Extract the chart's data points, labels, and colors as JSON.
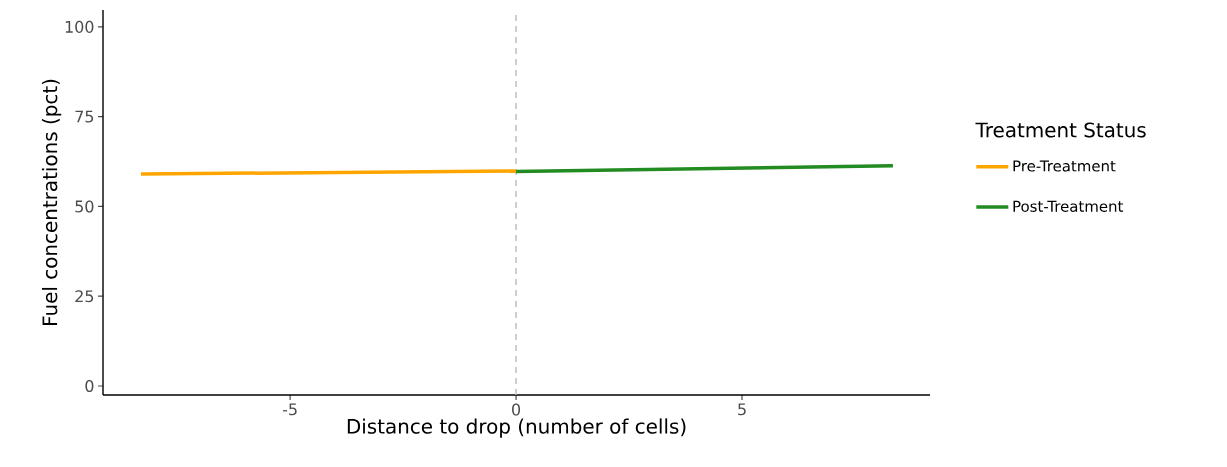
{
  "chart_data": {
    "type": "line",
    "xlabel": "Distance to drop (number of cells)",
    "ylabel": "Fuel concentrations (pct)",
    "legend_title": "Treatment Status",
    "series": [
      {
        "name": "Pre-Treatment",
        "color": "#ffa500",
        "x": [
          -8.3,
          0
        ],
        "values": [
          59.0,
          59.9
        ]
      },
      {
        "name": "Post-Treatment",
        "color": "#228b22",
        "x": [
          0,
          8.34
        ],
        "values": [
          59.7,
          61.3
        ]
      }
    ],
    "xlim": [
      -9.14,
      9.16
    ],
    "ylim": [
      -2.5,
      104.7
    ],
    "xticks": [
      -5,
      0,
      5
    ],
    "yticks": [
      0,
      25,
      50,
      75,
      100
    ],
    "ref_lines": [
      {
        "axis": "x",
        "value": 0,
        "color": "#bebebe",
        "line_style": "dashed"
      }
    ],
    "grid": false,
    "legend": "right"
  }
}
